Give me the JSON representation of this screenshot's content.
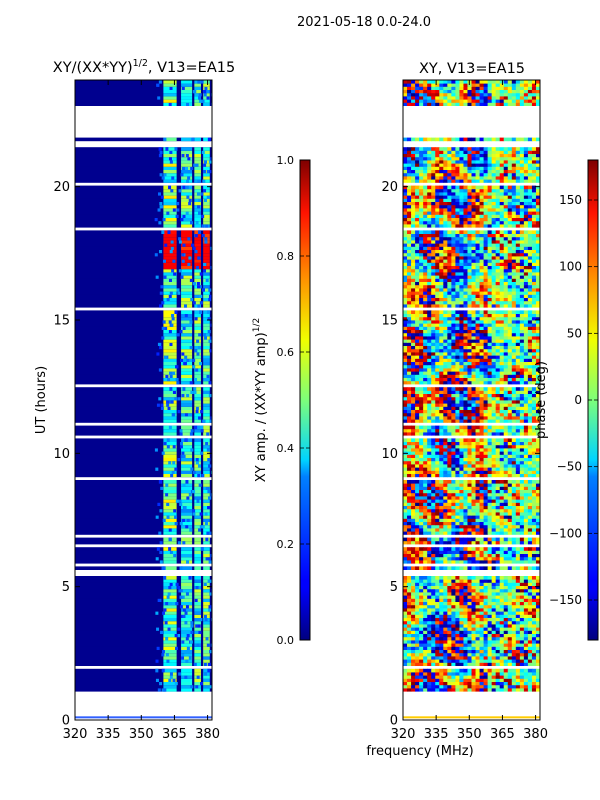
{
  "figure": {
    "suptitle": "2021-05-18 0.0-24.0",
    "xlabel_shared": "frequency (MHz)"
  },
  "chart_data": [
    {
      "type": "heatmap",
      "title_main": "XY/(XX*YY)",
      "title_sup": "1/2",
      "title_rest": ", V13=EA15",
      "ylabel": "UT (hours)",
      "xlim": [
        320,
        382
      ],
      "ylim": [
        0,
        24
      ],
      "xticks": [
        "320",
        "335",
        "350",
        "365",
        "380"
      ],
      "xtick_values": [
        320,
        335,
        350,
        365,
        380
      ],
      "yticks": [
        "0",
        "5",
        "10",
        "15",
        "20"
      ],
      "ytick_values": [
        0,
        5,
        10,
        15,
        20
      ],
      "colormap": "jet",
      "colorbar": {
        "label": "XY amp. / (XX*YY amp)",
        "label_sup": "1/2",
        "range": [
          0.0,
          1.0
        ],
        "ticks": [
          "0.0",
          "0.2",
          "0.4",
          "0.6",
          "0.8",
          "1.0"
        ],
        "tick_values": [
          0.0,
          0.2,
          0.4,
          0.6,
          0.8,
          1.0
        ]
      },
      "data_gaps_hours": [
        [
          0.0,
          1.0
        ],
        [
          21.8,
          23.0
        ]
      ],
      "bright_channels_MHz": [
        [
          360,
          366
        ],
        [
          368,
          373
        ],
        [
          374,
          377
        ],
        [
          378,
          381
        ]
      ]
    },
    {
      "type": "heatmap",
      "title": "XY, V13=EA15",
      "xlim": [
        320,
        382
      ],
      "ylim": [
        0,
        24
      ],
      "xticks": [
        "320",
        "335",
        "350",
        "365",
        "380"
      ],
      "xtick_values": [
        320,
        335,
        350,
        365,
        380
      ],
      "yticks": [
        "0",
        "5",
        "10",
        "15",
        "20"
      ],
      "ytick_values": [
        0,
        5,
        10,
        15,
        20
      ],
      "colormap": "jet",
      "colorbar": {
        "label": "phase (deg)",
        "range": [
          -180,
          180
        ],
        "ticks": [
          "−150",
          "−100",
          "−50",
          "0",
          "50",
          "100",
          "150"
        ],
        "tick_values": [
          -150,
          -100,
          -50,
          0,
          50,
          100,
          150
        ]
      },
      "data_gaps_hours": [
        [
          0.0,
          1.0
        ],
        [
          21.8,
          23.0
        ]
      ]
    }
  ]
}
